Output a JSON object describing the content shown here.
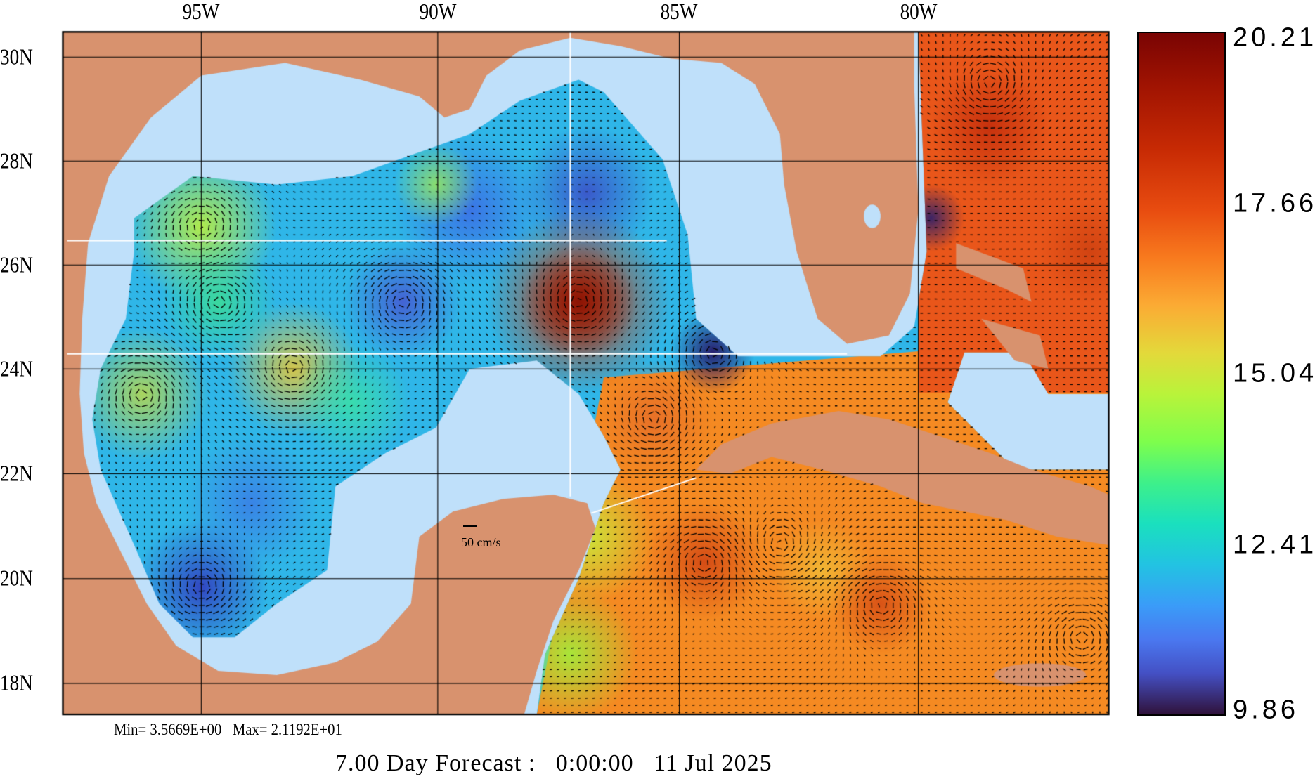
{
  "map": {
    "lon_labels": [
      "95W",
      "90W",
      "85W",
      "80W"
    ],
    "lat_labels": [
      "30N",
      "28N",
      "26N",
      "24N",
      "22N",
      "20N",
      "18N"
    ],
    "scale_vector_label": "50 cm/s",
    "stats": "Min= 3.5669E+00   Max= 2.1192E+01",
    "title": "7.00 Day Forecast :   0:00:00   11 Jul 2025"
  },
  "colorbar": {
    "labels": [
      "20.21",
      "17.66",
      "15.04",
      "12.41",
      "9.86"
    ],
    "min": 9.86,
    "max": 20.21
  },
  "colors": {
    "land": "#d8926e",
    "water": "#bfe0fa",
    "grid": "#000000",
    "section_lines": "#ffffff"
  }
}
